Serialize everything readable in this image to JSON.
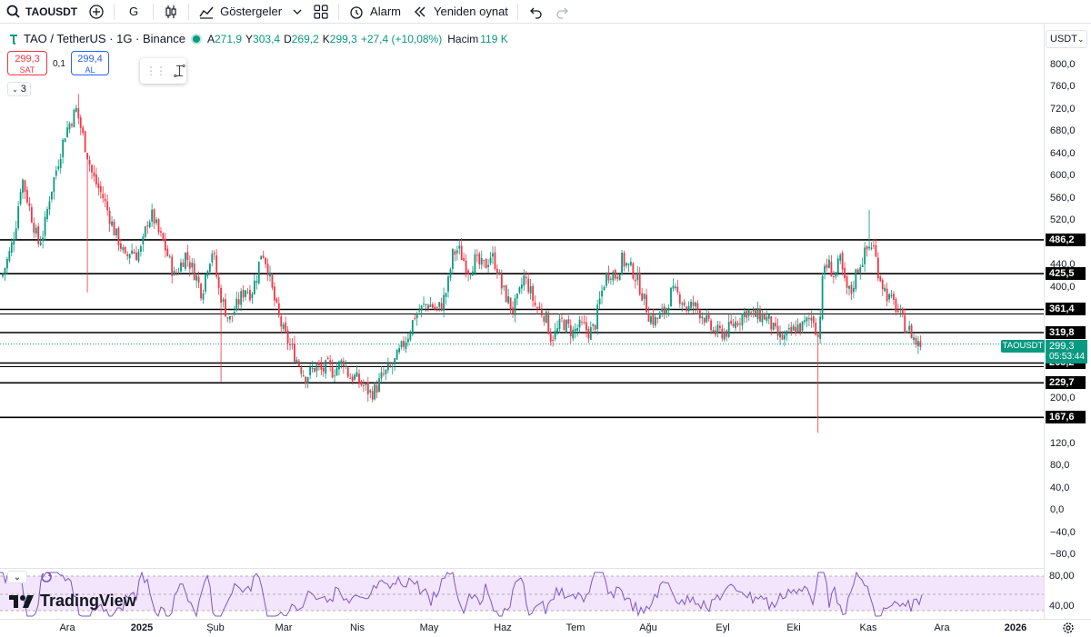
{
  "toolbar": {
    "symbol": "TAOUSDT",
    "interval": "G",
    "indicators_label": "Göstergeler",
    "alarm_label": "Alarm",
    "replay_label": "Yeniden oynat"
  },
  "legend": {
    "title": "TAO / TetherUS · 1G · Binance",
    "open_label": "A",
    "open": "271,9",
    "high_label": "Y",
    "high": "303,4",
    "low_label": "D",
    "low": "269,2",
    "close_label": "K",
    "close": "299,3",
    "change": "+27,4 (+10,08%)",
    "volume_label": "Hacim",
    "volume": "119 K"
  },
  "trade": {
    "sell_price": "299,3",
    "sell_label": "SAT",
    "spread": "0,1",
    "buy_price": "299,4",
    "buy_label": "AL"
  },
  "collapse_count": "3",
  "currency": "USDT",
  "price_ticks": [
    "800,0",
    "760,0",
    "720,0",
    "680,0",
    "640,0",
    "600,0",
    "560,0",
    "520,0",
    "440,0",
    "400,0",
    "200,0",
    "120,0",
    "80,0",
    "40,0",
    "0,0",
    "−40,0",
    "−80,0"
  ],
  "levels": [
    "486,2",
    "425,5",
    "361,4",
    "319,8",
    "265,2",
    "229,7",
    "167,6"
  ],
  "current": {
    "symbol": "TAOUSDT",
    "price": "299,3",
    "countdown": "05:53:44"
  },
  "rsi_ticks": [
    "80,00",
    "40,00"
  ],
  "logo_text": "TradingView",
  "time_labels": [
    "Ara",
    "2025",
    "Şub",
    "Mar",
    "Nis",
    "May",
    "Haz",
    "Tem",
    "Ağu",
    "Eyl",
    "Eki",
    "Kas",
    "Ara",
    "2026"
  ],
  "colors": {
    "up": "#089981",
    "down": "#f23645",
    "rsi": "#7e57c2",
    "rsi_band": "#f3e5fc"
  },
  "chart_data": {
    "type": "candlestick",
    "ylim": [
      -80,
      800
    ],
    "close_path": [
      [
        0,
        410
      ],
      [
        6,
        440
      ],
      [
        12,
        470
      ],
      [
        18,
        520
      ],
      [
        24,
        600
      ],
      [
        30,
        560
      ],
      [
        36,
        520
      ],
      [
        42,
        480
      ],
      [
        48,
        500
      ],
      [
        54,
        560
      ],
      [
        60,
        600
      ],
      [
        66,
        640
      ],
      [
        72,
        680
      ],
      [
        78,
        700
      ],
      [
        84,
        720
      ],
      [
        90,
        680
      ],
      [
        96,
        640
      ],
      [
        102,
        600
      ],
      [
        108,
        580
      ],
      [
        114,
        560
      ],
      [
        120,
        530
      ],
      [
        126,
        500
      ],
      [
        132,
        480
      ],
      [
        138,
        450
      ],
      [
        144,
        470
      ],
      [
        150,
        460
      ],
      [
        156,
        470
      ],
      [
        162,
        520
      ],
      [
        168,
        530
      ],
      [
        174,
        500
      ],
      [
        180,
        480
      ],
      [
        186,
        450
      ],
      [
        192,
        420
      ],
      [
        198,
        440
      ],
      [
        204,
        460
      ],
      [
        210,
        440
      ],
      [
        216,
        420
      ],
      [
        222,
        390
      ],
      [
        228,
        440
      ],
      [
        234,
        470
      ],
      [
        240,
        400
      ],
      [
        246,
        370
      ],
      [
        252,
        340
      ],
      [
        258,
        360
      ],
      [
        264,
        380
      ],
      [
        270,
        400
      ],
      [
        276,
        390
      ],
      [
        282,
        420
      ],
      [
        288,
        470
      ],
      [
        294,
        440
      ],
      [
        300,
        390
      ],
      [
        306,
        350
      ],
      [
        312,
        320
      ],
      [
        318,
        300
      ],
      [
        324,
        280
      ],
      [
        330,
        260
      ],
      [
        336,
        240
      ],
      [
        342,
        250
      ],
      [
        348,
        260
      ],
      [
        354,
        250
      ],
      [
        360,
        260
      ],
      [
        366,
        250
      ],
      [
        372,
        260
      ],
      [
        378,
        270
      ],
      [
        384,
        240
      ],
      [
        390,
        240
      ],
      [
        396,
        230
      ],
      [
        402,
        220
      ],
      [
        408,
        210
      ],
      [
        414,
        220
      ],
      [
        420,
        240
      ],
      [
        426,
        250
      ],
      [
        432,
        260
      ],
      [
        438,
        280
      ],
      [
        444,
        300
      ],
      [
        450,
        320
      ],
      [
        456,
        350
      ],
      [
        462,
        360
      ],
      [
        468,
        370
      ],
      [
        474,
        370
      ],
      [
        480,
        360
      ],
      [
        486,
        370
      ],
      [
        492,
        400
      ],
      [
        498,
        460
      ],
      [
        504,
        470
      ],
      [
        510,
        450
      ],
      [
        516,
        430
      ],
      [
        522,
        450
      ],
      [
        528,
        440
      ],
      [
        534,
        440
      ],
      [
        540,
        460
      ],
      [
        546,
        440
      ],
      [
        552,
        400
      ],
      [
        558,
        380
      ],
      [
        564,
        360
      ],
      [
        570,
        380
      ],
      [
        576,
        420
      ],
      [
        582,
        400
      ],
      [
        588,
        370
      ],
      [
        594,
        360
      ],
      [
        600,
        350
      ],
      [
        606,
        310
      ],
      [
        612,
        320
      ],
      [
        618,
        340
      ],
      [
        624,
        330
      ],
      [
        630,
        320
      ],
      [
        636,
        330
      ],
      [
        642,
        330
      ],
      [
        648,
        320
      ],
      [
        654,
        330
      ],
      [
        660,
        380
      ],
      [
        666,
        420
      ],
      [
        672,
        430
      ],
      [
        678,
        420
      ],
      [
        684,
        450
      ],
      [
        690,
        440
      ],
      [
        696,
        430
      ],
      [
        702,
        410
      ],
      [
        708,
        380
      ],
      [
        714,
        350
      ],
      [
        720,
        340
      ],
      [
        726,
        350
      ],
      [
        732,
        360
      ],
      [
        738,
        390
      ],
      [
        744,
        390
      ],
      [
        750,
        380
      ],
      [
        756,
        360
      ],
      [
        762,
        370
      ],
      [
        768,
        360
      ],
      [
        774,
        350
      ],
      [
        780,
        330
      ],
      [
        786,
        320
      ],
      [
        792,
        320
      ],
      [
        798,
        320
      ],
      [
        804,
        330
      ],
      [
        810,
        340
      ],
      [
        816,
        350
      ],
      [
        822,
        360
      ],
      [
        828,
        350
      ],
      [
        834,
        350
      ],
      [
        840,
        350
      ],
      [
        846,
        340
      ],
      [
        852,
        320
      ],
      [
        858,
        310
      ],
      [
        864,
        310
      ],
      [
        870,
        320
      ],
      [
        876,
        330
      ],
      [
        882,
        330
      ],
      [
        888,
        340
      ],
      [
        894,
        350
      ],
      [
        900,
        310
      ],
      [
        906,
        440
      ],
      [
        912,
        440
      ],
      [
        918,
        420
      ],
      [
        924,
        450
      ],
      [
        930,
        400
      ],
      [
        936,
        390
      ],
      [
        942,
        430
      ],
      [
        948,
        450
      ],
      [
        954,
        470
      ],
      [
        960,
        480
      ],
      [
        966,
        430
      ],
      [
        972,
        400
      ],
      [
        978,
        380
      ],
      [
        984,
        370
      ],
      [
        990,
        350
      ],
      [
        996,
        330
      ],
      [
        1002,
        320
      ],
      [
        1008,
        300
      ],
      [
        1014,
        299.3
      ]
    ]
  }
}
